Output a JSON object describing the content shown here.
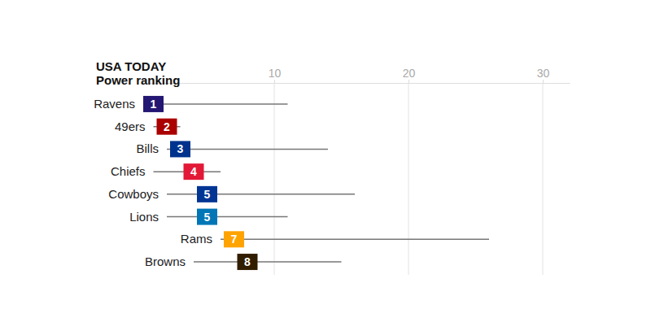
{
  "chart_data": {
    "type": "range",
    "orientation": "horizontal",
    "title": "USA TODAY",
    "subtitle": "Power ranking",
    "categories": [
      "Ravens",
      "49ers",
      "Bills",
      "Chiefs",
      "Cowboys",
      "Lions",
      "Rams",
      "Browns"
    ],
    "values": [
      1,
      2,
      3,
      4,
      5,
      5,
      7,
      8
    ],
    "range_low": [
      1,
      1,
      2,
      1,
      2,
      2,
      6,
      4
    ],
    "range_high": [
      11,
      3,
      14,
      6,
      16,
      11,
      26,
      15
    ],
    "colors": [
      "#241773",
      "#aa0000",
      "#00338d",
      "#e31837",
      "#003594",
      "#0076b6",
      "#ffa300",
      "#311d00"
    ],
    "xlim": [
      0,
      32
    ],
    "xticks": [
      10,
      20,
      30
    ],
    "grid": true,
    "data_labels": true
  }
}
